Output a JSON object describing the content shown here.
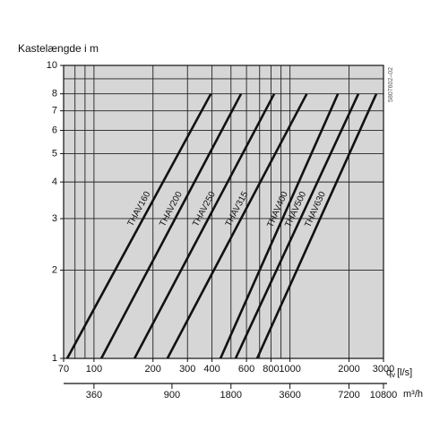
{
  "chart_data": {
    "type": "line",
    "ylabel": "Kastelængde i m",
    "xlabel": {
      "main": "q",
      "sub": "v",
      "unit": "[l/s]"
    },
    "x2label": "m³/h",
    "side_note": "5807602–02",
    "log_x": true,
    "log_y": true,
    "grid": true,
    "background": "#d6d6d6",
    "xlim": [
      70,
      3000
    ],
    "xticks": [
      70,
      100,
      200,
      300,
      400,
      600,
      800,
      1000,
      2000,
      3000
    ],
    "xgrid": [
      70,
      80,
      90,
      100,
      200,
      300,
      400,
      500,
      600,
      700,
      800,
      900,
      1000,
      2000,
      3000
    ],
    "ylim": [
      1,
      10
    ],
    "yticks": [
      1,
      2,
      3,
      4,
      5,
      6,
      7,
      8,
      10
    ],
    "ygrid": [
      1,
      2,
      3,
      4,
      5,
      6,
      7,
      8,
      9,
      10
    ],
    "x2lim": [
      252,
      10800
    ],
    "x2ticks": [
      360,
      900,
      1800,
      3600,
      7200,
      10800
    ],
    "series": [
      {
        "name": "THAV160",
        "color": "#111111",
        "x": [
          73,
          395
        ],
        "values": [
          1,
          8
        ]
      },
      {
        "name": "THAV200",
        "color": "#111111",
        "x": [
          109,
          563
        ],
        "values": [
          1,
          8
        ]
      },
      {
        "name": "THAV250",
        "color": "#111111",
        "x": [
          161,
          831
        ],
        "values": [
          1,
          8
        ]
      },
      {
        "name": "THAV315",
        "color": "#111111",
        "x": [
          237,
          1218
        ],
        "values": [
          1,
          8
        ]
      },
      {
        "name": "THAV400",
        "color": "#111111",
        "x": [
          442,
          1757
        ],
        "values": [
          1,
          8
        ]
      },
      {
        "name": "THAV500",
        "color": "#111111",
        "x": [
          528,
          2234
        ],
        "values": [
          1,
          8
        ]
      },
      {
        "name": "THAV630",
        "color": "#111111",
        "x": [
          680,
          2758
        ],
        "values": [
          1,
          8
        ]
      }
    ]
  }
}
